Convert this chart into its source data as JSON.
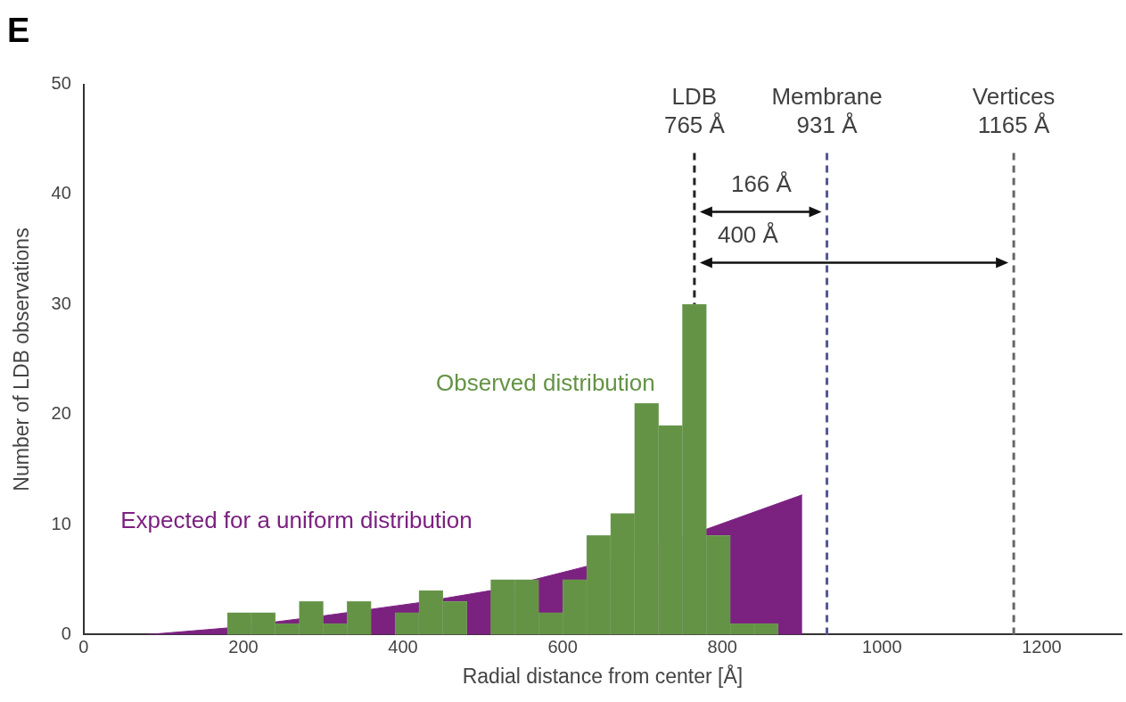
{
  "chart_data": {
    "type": "histogram",
    "title": "E",
    "xlabel": "Radial distance from center [Å]",
    "ylabel": "Number of LDB observations",
    "series": [
      {
        "name": "Expected for a uniform distribution",
        "type": "area",
        "color": "#7b2180",
        "x": [
          80,
          180,
          300,
          420,
          510,
          630,
          781,
          900
        ],
        "values": [
          0,
          0.6,
          1.7,
          2.9,
          4.0,
          6.2,
          9.6,
          12.7
        ]
      },
      {
        "name": "Observed distribution",
        "color": "#649345",
        "bins": [
          180,
          210,
          240,
          270,
          300,
          330,
          360,
          390,
          420,
          450,
          480,
          510,
          540,
          570,
          600,
          630,
          660,
          690,
          720,
          750,
          780,
          810,
          840,
          870
        ],
        "values": [
          2,
          2,
          1,
          3,
          1,
          3,
          0,
          2,
          4,
          3,
          0,
          5,
          5,
          2,
          5,
          9,
          11,
          21,
          19,
          30,
          9,
          1,
          1
        ]
      }
    ],
    "xlim": [
      0,
      1300
    ],
    "xticks": [
      0,
      200,
      400,
      600,
      800,
      1000,
      1200
    ],
    "ylim": [
      0,
      50
    ],
    "yticks": [
      0,
      10,
      20,
      30,
      40,
      50
    ],
    "ref_lines": [
      {
        "axis": "x",
        "value": 765,
        "label": "LDB\n765 Å",
        "color": "#222222",
        "line_style": "dashed"
      },
      {
        "axis": "x",
        "value": 931,
        "label": "Membrane\n931 Å",
        "color": "#54578f",
        "line_style": "dashed"
      },
      {
        "axis": "x",
        "value": 1165,
        "label": "Vertices\n1165 Å",
        "color": "#666666",
        "line_style": "dashed"
      }
    ],
    "annotations": [
      "166 Å",
      "400 Å"
    ],
    "grid": false,
    "legend": false
  }
}
